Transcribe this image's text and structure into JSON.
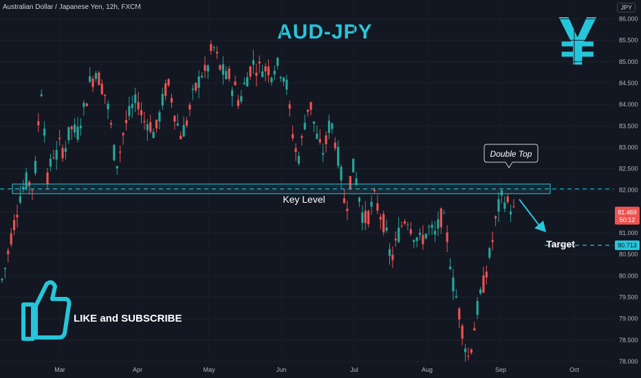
{
  "header": {
    "symbol_title": "Australian Dollar / Japanese Yen, 12h, FXCM",
    "main_title": "AUD-JPY",
    "currency_badge": "JPY",
    "yen_symbol": "¥"
  },
  "promo": {
    "text": "LIKE and SUBSCRIBE",
    "icon": "thumbs-up-icon"
  },
  "colors": {
    "up": "#26a69a",
    "down": "#ef5350",
    "accent": "#26c6da",
    "background": "#131722"
  },
  "chart_data": {
    "type": "candlestick",
    "interval": "12h",
    "ylim": [
      77.85,
      86.15
    ],
    "yticks": [
      "86.000",
      "85.500",
      "85.000",
      "84.500",
      "84.000",
      "83.500",
      "83.000",
      "82.500",
      "82.000",
      "81.500",
      "81.000",
      "80.500",
      "80.000",
      "79.500",
      "79.000",
      "78.500",
      "78.000"
    ],
    "xticks": [
      "Mar",
      "Apr",
      "May",
      "Jun",
      "Jul",
      "Aug",
      "Sep",
      "Oct"
    ],
    "close_path": [
      79.9,
      80.2,
      80.6,
      81.0,
      81.3,
      81.7,
      82.0,
      82.1,
      82.3,
      82.0,
      82.2,
      83.3,
      84.5,
      83.6,
      82.2,
      82.6,
      82.9,
      82.8,
      83.1,
      82.9,
      83.1,
      83.4,
      83.5,
      83.2,
      83.6,
      83.8,
      84.1,
      84.5,
      84.6,
      84.8,
      84.6,
      84.4,
      84.2,
      83.8,
      83.3,
      82.6,
      82.7,
      83.2,
      83.5,
      83.7,
      83.9,
      84.0,
      84.1,
      83.8,
      83.6,
      83.6,
      83.5,
      83.3,
      83.5,
      83.9,
      84.2,
      84.5,
      84.3,
      83.9,
      83.6,
      83.3,
      83.4,
      83.6,
      83.9,
      84.2,
      84.4,
      84.6,
      84.8,
      84.7,
      85.0,
      85.4,
      85.2,
      84.9,
      84.8,
      84.6,
      84.7,
      84.4,
      84.4,
      84.1,
      84.2,
      84.5,
      84.7,
      84.9,
      85.0,
      84.8,
      84.9,
      84.8,
      84.9,
      84.7,
      84.9,
      84.9,
      84.8,
      84.7,
      84.4,
      83.7,
      83.2,
      82.8,
      82.8,
      83.4,
      83.8,
      84.1,
      83.7,
      83.3,
      83.0,
      82.9,
      83.1,
      83.5,
      83.5,
      83.1,
      82.7,
      82.2,
      81.5,
      81.9,
      82.6,
      82.4,
      82.0,
      81.5,
      81.3,
      81.4,
      81.6,
      81.8,
      81.6,
      81.4,
      81.2,
      80.8,
      80.4,
      80.5,
      80.9,
      81.1,
      81.3,
      81.4,
      81.2,
      81.0,
      80.9,
      80.8,
      80.9,
      81.0,
      81.1,
      81.0,
      80.9,
      81.3,
      81.4,
      81.1,
      80.6,
      79.9,
      79.6,
      79.2,
      78.8,
      78.4,
      78.1,
      78.4,
      78.9,
      79.3,
      79.6,
      79.9,
      80.3,
      80.6,
      81.1,
      81.5,
      81.8,
      81.8,
      81.7,
      81.6,
      81.5
    ],
    "last_price": "81.469",
    "countdown": "50:12",
    "target_price": "80.713",
    "key_level": 82.03,
    "annotations": {
      "key_level": "Key Level",
      "double_top": "Double Top",
      "target": "Target"
    }
  }
}
